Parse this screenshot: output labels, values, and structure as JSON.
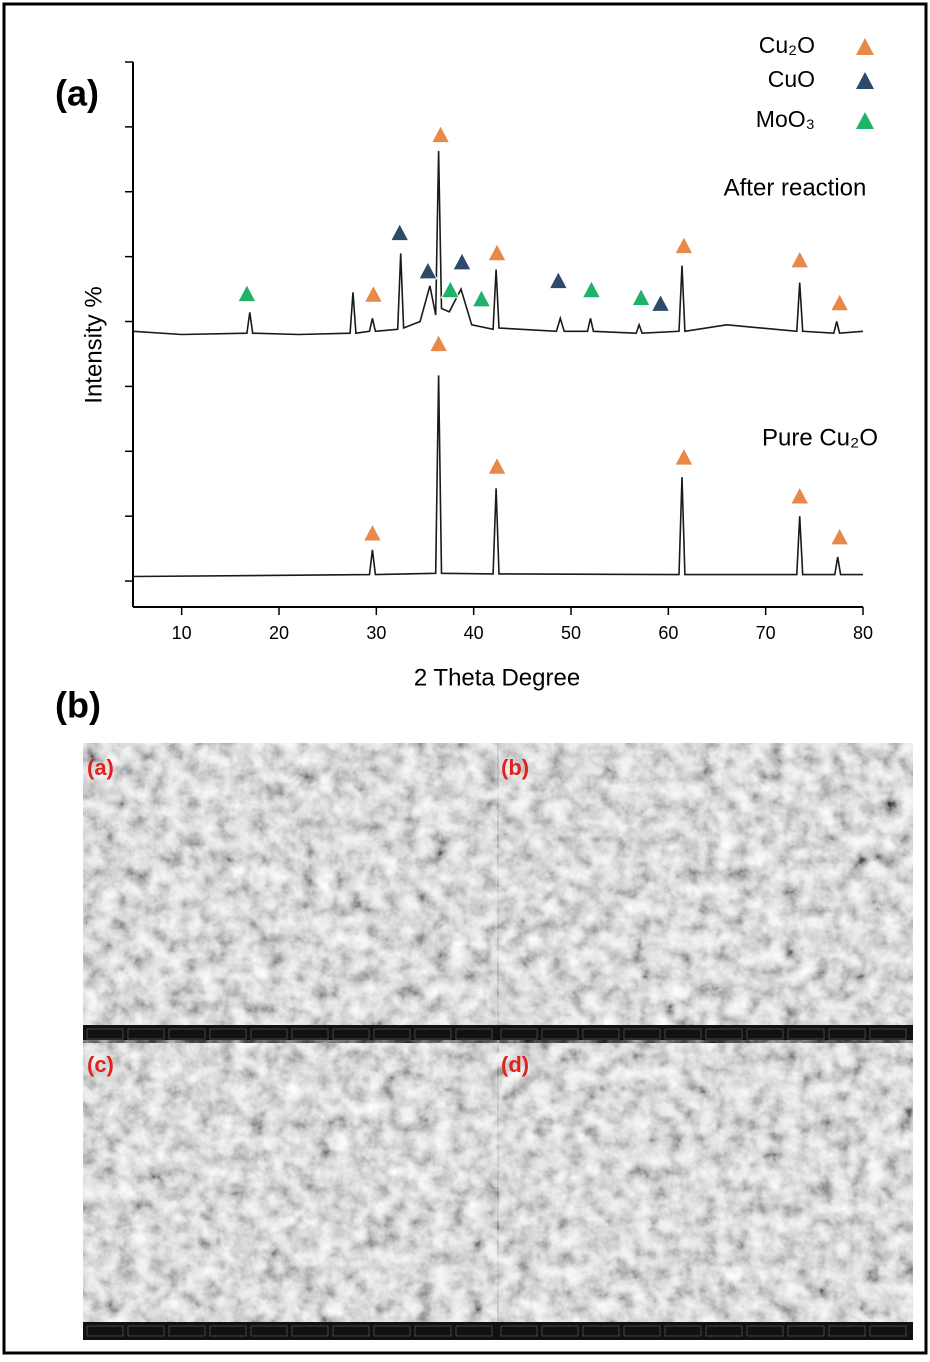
{
  "chart_data": {
    "type": "line",
    "xlabel": "2 Theta Degree",
    "ylabel": "Intensity %",
    "xlim": [
      5,
      80
    ],
    "xticks": [
      10,
      20,
      30,
      40,
      50,
      60,
      70,
      80
    ],
    "ylim": [
      -0.4,
      8
    ],
    "yticks": [
      0,
      1,
      2,
      3,
      4,
      5,
      6,
      7,
      8
    ],
    "series": [
      {
        "name": "After reaction",
        "color": "#1a1a1a",
        "x": [
          5,
          10,
          16.7,
          17,
          17.3,
          22,
          27.3,
          27.6,
          27.9,
          29.3,
          29.6,
          29.9,
          32.2,
          32.5,
          32.8,
          34.5,
          35.5,
          36.1,
          36.4,
          36.7,
          37.5,
          38.7,
          39.8,
          42.0,
          42.3,
          42.6,
          48.5,
          48.9,
          49.3,
          51.7,
          52,
          52.3,
          56.7,
          57,
          57.3,
          61.1,
          61.4,
          61.7,
          66,
          73.2,
          73.5,
          73.8,
          77,
          77.3,
          77.6,
          80
        ],
        "values": [
          3.85,
          3.8,
          3.82,
          4.14,
          3.82,
          3.8,
          3.82,
          4.45,
          3.82,
          3.85,
          4.05,
          3.85,
          3.88,
          5.05,
          3.9,
          4.0,
          4.55,
          4.1,
          6.63,
          4.2,
          4.15,
          4.5,
          3.95,
          3.88,
          4.8,
          3.9,
          3.85,
          4.05,
          3.85,
          3.85,
          4.05,
          3.85,
          3.82,
          3.95,
          3.82,
          3.85,
          4.86,
          3.85,
          3.95,
          3.85,
          4.6,
          3.85,
          3.82,
          4.0,
          3.82,
          3.85
        ]
      },
      {
        "name": "Pure Cu₂O",
        "color": "#1a1a1a",
        "x": [
          5,
          29.3,
          29.6,
          29.9,
          36.1,
          36.4,
          36.7,
          42.0,
          42.3,
          42.6,
          61.1,
          61.4,
          61.7,
          73.2,
          73.5,
          73.8,
          77.1,
          77.4,
          77.7,
          80
        ],
        "values": [
          0.07,
          0.1,
          0.48,
          0.1,
          0.12,
          3.17,
          0.12,
          0.11,
          1.43,
          0.11,
          0.1,
          1.6,
          0.1,
          0.1,
          1.0,
          0.1,
          0.1,
          0.37,
          0.1,
          0.1
        ]
      }
    ],
    "markers": [
      {
        "name": "Cu₂O",
        "color": "#e8894a",
        "x": [
          29.7,
          36.6,
          42.4,
          61.6,
          73.5,
          77.6,
          36.4,
          42.4,
          61.6,
          73.5,
          29.6,
          77.6
        ],
        "values": [
          4.42,
          6.88,
          5.06,
          5.17,
          4.95,
          4.29,
          3.66,
          1.77,
          1.91,
          1.31,
          0.74,
          0.68
        ]
      },
      {
        "name": "CuO",
        "color": "#2d4a6b",
        "x": [
          32.4,
          35.3,
          38.8,
          48.7,
          59.2
        ],
        "values": [
          5.37,
          4.78,
          4.92,
          4.63,
          4.28
        ]
      },
      {
        "name": "MoO₃",
        "color": "#1fb36a",
        "x": [
          16.7,
          37.6,
          40.8,
          52.1,
          57.2
        ],
        "values": [
          4.43,
          4.49,
          4.35,
          4.49,
          4.37
        ]
      }
    ]
  },
  "figure": {
    "panels": [
      "(a)",
      "(b)"
    ],
    "sem_images": [
      "(a)",
      "(b)",
      "(c)",
      "(d)"
    ]
  }
}
